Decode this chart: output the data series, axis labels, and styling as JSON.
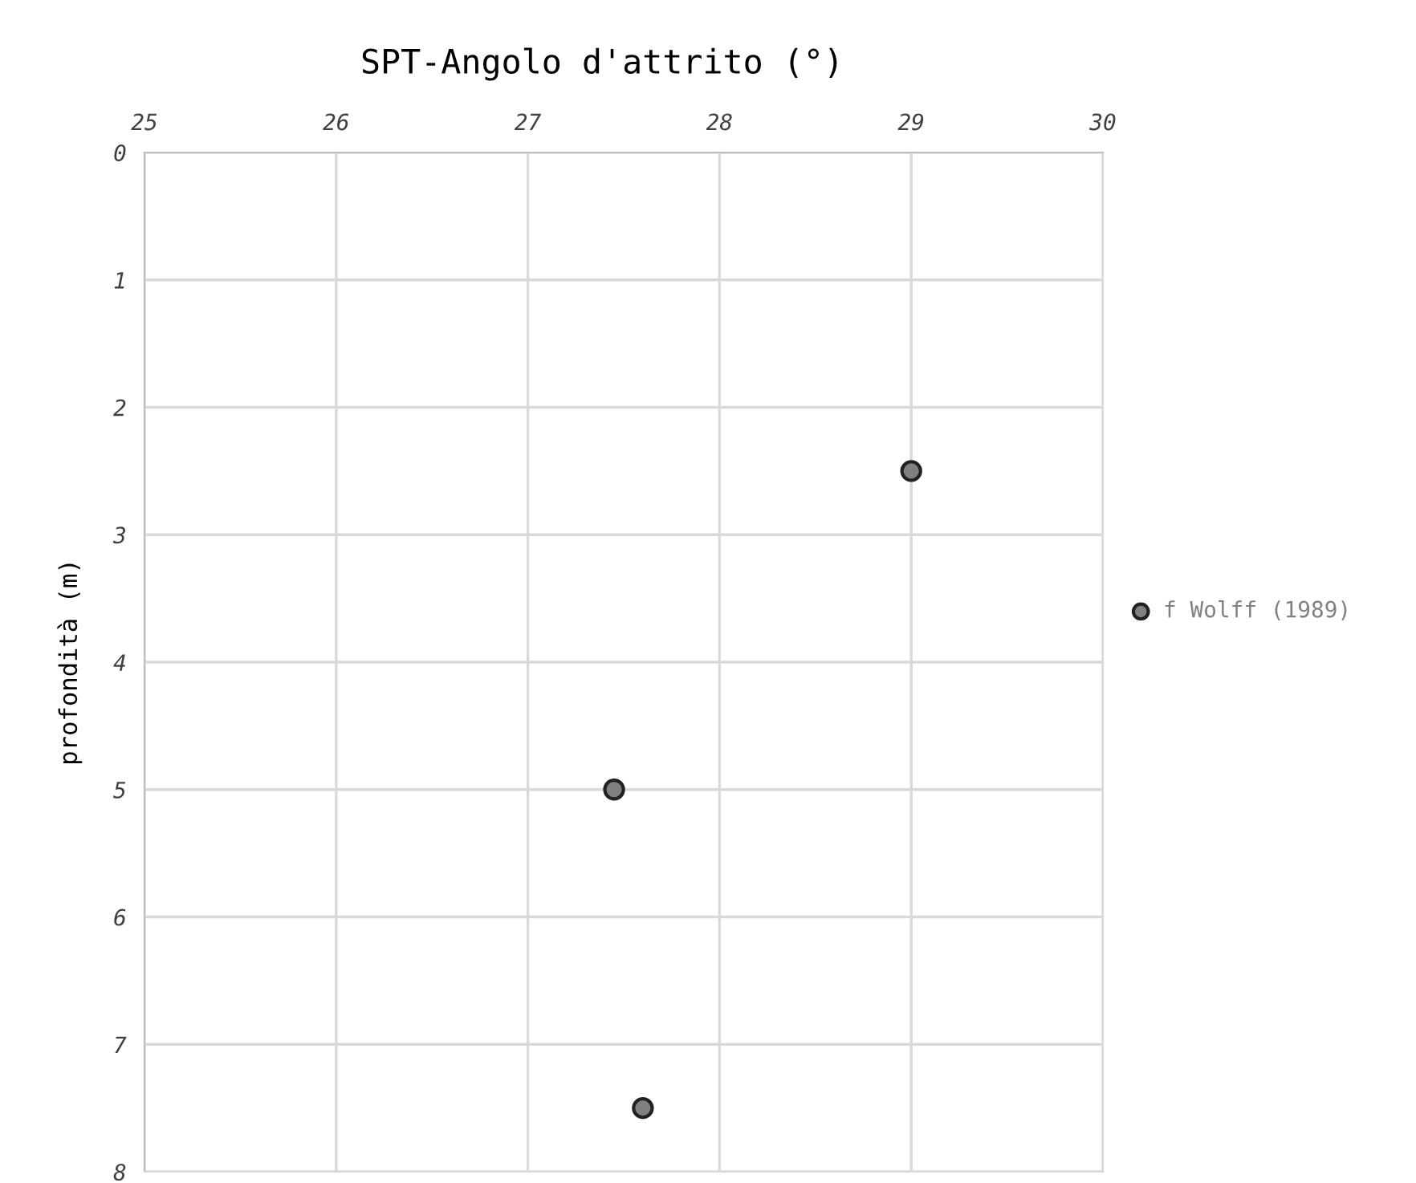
{
  "chart_data": {
    "type": "scatter",
    "title": "SPT-Angolo d'attrito (°)",
    "ylabel": "profondità (m)",
    "x": [
      29.0,
      27.45,
      27.6
    ],
    "series": [
      {
        "name": "f Wolff (1989)",
        "color": "#808080",
        "values": [
          2.5,
          5.0,
          7.5
        ]
      }
    ],
    "xlim": [
      25,
      30
    ],
    "xticks": [
      25,
      26,
      27,
      28,
      29,
      30
    ],
    "ylim": [
      8,
      0
    ],
    "yticks": [
      0,
      1,
      2,
      3,
      4,
      5,
      6,
      7,
      8
    ],
    "grid": true,
    "legend": "right",
    "marker": "circle"
  }
}
